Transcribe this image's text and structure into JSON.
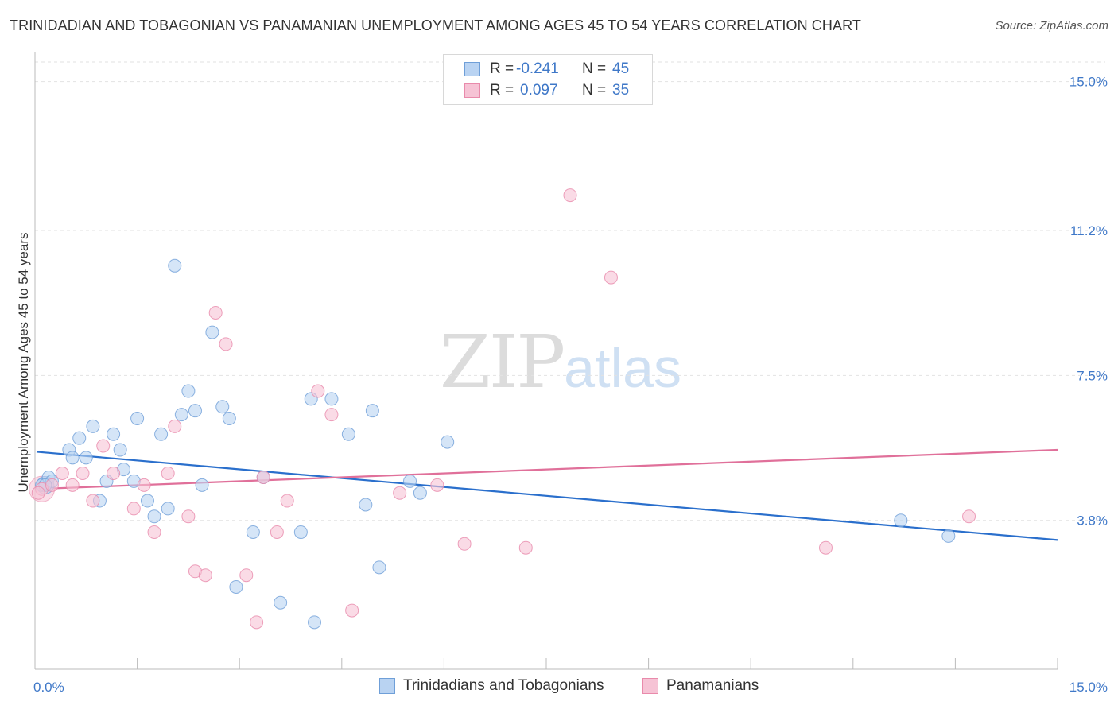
{
  "title": "TRINIDADIAN AND TOBAGONIAN VS PANAMANIAN UNEMPLOYMENT AMONG AGES 45 TO 54 YEARS CORRELATION CHART",
  "source": "Source: ZipAtlas.com",
  "watermark": {
    "zip": "ZIP",
    "atlas": "atlas"
  },
  "stats": [
    {
      "r_label": "R =",
      "r_value": "-0.241",
      "n_label": "N =",
      "n_value": "45"
    },
    {
      "r_label": "R =",
      "r_value": "0.097",
      "n_label": "N =",
      "n_value": "35"
    }
  ],
  "legend": [
    "Trinidadians and Tobagonians",
    "Panamanians"
  ],
  "colors": {
    "blue_fill": "#b9d3f2",
    "blue_stroke": "#6f9fd8",
    "blue_line": "#2a6fcc",
    "pink_fill": "#f6c3d5",
    "pink_stroke": "#e98aab",
    "pink_line": "#e0709a",
    "tick_text": "#3f78c8",
    "grid": "#e2e2e2"
  },
  "chart_data": {
    "type": "scatter",
    "title": "TRINIDADIAN AND TOBAGONIAN VS PANAMANIAN UNEMPLOYMENT AMONG AGES 45 TO 54 YEARS CORRELATION CHART",
    "xlabel": "",
    "ylabel": "Unemployment Among Ages 45 to 54 years",
    "xlim": [
      0,
      15
    ],
    "ylim": [
      0,
      15.5
    ],
    "x_tick_labels": [
      "0.0%",
      "15.0%"
    ],
    "y_ticks": [
      3.8,
      7.5,
      11.2,
      15.0
    ],
    "y_tick_labels": [
      "3.8%",
      "7.5%",
      "11.2%",
      "15.0%"
    ],
    "grid": true,
    "legend_position": "bottom",
    "series": [
      {
        "name": "Trinidadians and Tobagonians",
        "points": [
          [
            0.1,
            4.7
          ],
          [
            0.2,
            4.9
          ],
          [
            0.25,
            4.8
          ],
          [
            0.5,
            5.6
          ],
          [
            0.55,
            5.4
          ],
          [
            0.65,
            5.9
          ],
          [
            0.75,
            5.4
          ],
          [
            0.85,
            6.2
          ],
          [
            0.95,
            4.3
          ],
          [
            1.05,
            4.8
          ],
          [
            1.15,
            6.0
          ],
          [
            1.25,
            5.6
          ],
          [
            1.3,
            5.1
          ],
          [
            1.45,
            4.8
          ],
          [
            1.5,
            6.4
          ],
          [
            1.65,
            4.3
          ],
          [
            1.75,
            3.9
          ],
          [
            1.85,
            6.0
          ],
          [
            1.95,
            4.1
          ],
          [
            2.05,
            10.3
          ],
          [
            2.15,
            6.5
          ],
          [
            2.25,
            7.1
          ],
          [
            2.35,
            6.6
          ],
          [
            2.45,
            4.7
          ],
          [
            2.6,
            8.6
          ],
          [
            2.75,
            6.7
          ],
          [
            2.85,
            6.4
          ],
          [
            2.95,
            2.1
          ],
          [
            3.2,
            3.5
          ],
          [
            3.35,
            4.9
          ],
          [
            3.6,
            1.7
          ],
          [
            3.9,
            3.5
          ],
          [
            4.05,
            6.9
          ],
          [
            4.1,
            1.2
          ],
          [
            4.35,
            6.9
          ],
          [
            4.6,
            6.0
          ],
          [
            4.85,
            4.2
          ],
          [
            4.95,
            6.6
          ],
          [
            5.05,
            2.6
          ],
          [
            5.5,
            4.8
          ],
          [
            5.65,
            4.5
          ],
          [
            6.05,
            5.8
          ],
          [
            12.7,
            3.8
          ],
          [
            13.4,
            3.4
          ],
          [
            0.15,
            4.7
          ]
        ]
      },
      {
        "name": "Panamanians",
        "points": [
          [
            0.1,
            4.6
          ],
          [
            0.25,
            4.7
          ],
          [
            0.4,
            5.0
          ],
          [
            0.55,
            4.7
          ],
          [
            0.7,
            5.0
          ],
          [
            0.85,
            4.3
          ],
          [
            1.0,
            5.7
          ],
          [
            1.15,
            5.0
          ],
          [
            1.45,
            4.1
          ],
          [
            1.6,
            4.7
          ],
          [
            1.75,
            3.5
          ],
          [
            1.95,
            5.0
          ],
          [
            2.05,
            6.2
          ],
          [
            2.25,
            3.9
          ],
          [
            2.35,
            2.5
          ],
          [
            2.5,
            2.4
          ],
          [
            2.65,
            9.1
          ],
          [
            2.8,
            8.3
          ],
          [
            3.1,
            2.4
          ],
          [
            3.25,
            1.2
          ],
          [
            3.35,
            4.9
          ],
          [
            3.55,
            3.5
          ],
          [
            3.7,
            4.3
          ],
          [
            4.15,
            7.1
          ],
          [
            4.35,
            6.5
          ],
          [
            4.65,
            1.5
          ],
          [
            5.35,
            4.5
          ],
          [
            5.9,
            4.7
          ],
          [
            6.3,
            3.2
          ],
          [
            7.2,
            3.1
          ],
          [
            7.85,
            12.1
          ],
          [
            8.45,
            10.0
          ],
          [
            11.6,
            3.1
          ],
          [
            13.7,
            3.9
          ],
          [
            0.05,
            4.5
          ]
        ]
      }
    ],
    "trend_lines": [
      {
        "name": "Trinidadians and Tobagonians",
        "x": [
          0,
          15
        ],
        "y": [
          5.55,
          3.3
        ]
      },
      {
        "name": "Panamanians",
        "x": [
          0,
          15
        ],
        "y": [
          4.6,
          5.6
        ]
      }
    ]
  }
}
